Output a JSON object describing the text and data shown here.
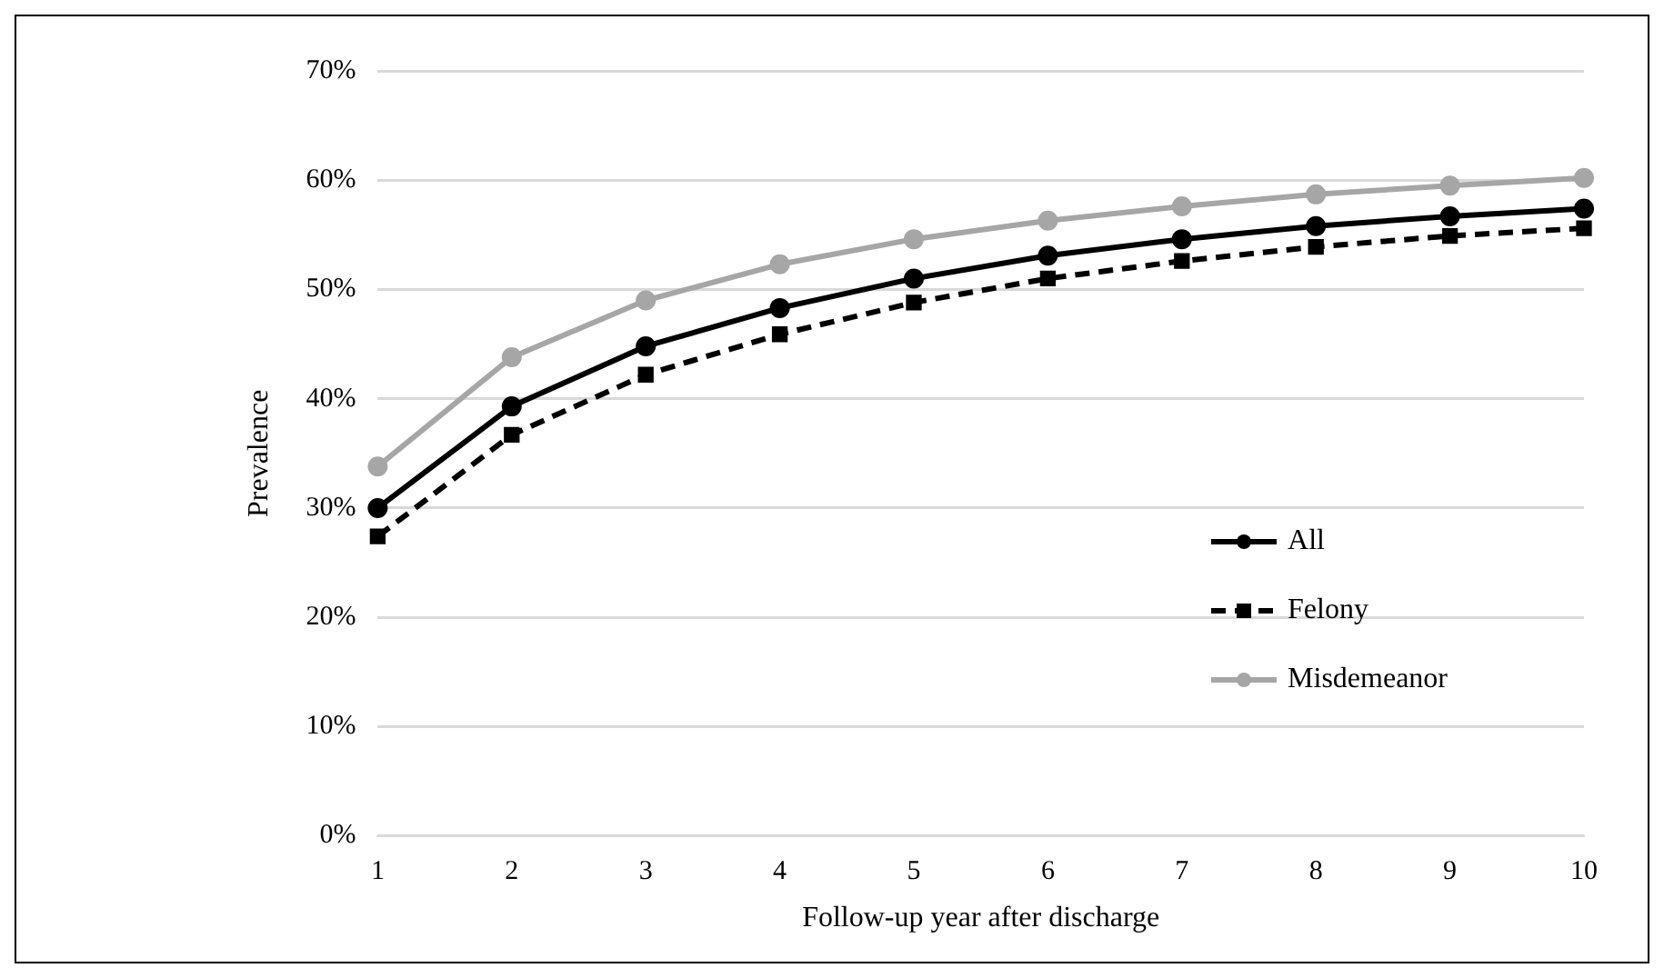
{
  "chart_data": {
    "type": "line",
    "xlabel": "Follow-up year after discharge",
    "ylabel": "Prevalence",
    "categories": [
      "1",
      "2",
      "3",
      "4",
      "5",
      "6",
      "7",
      "8",
      "9",
      "10"
    ],
    "series": [
      {
        "name": "All",
        "color": "#000000",
        "line_style": "solid",
        "marker": "circle",
        "values": [
          30,
          39.3,
          44.8,
          48.3,
          51,
          53.1,
          54.6,
          55.8,
          56.7,
          57.4
        ]
      },
      {
        "name": "Felony",
        "color": "#000000",
        "line_style": "dashed",
        "marker": "square",
        "values": [
          27.4,
          36.7,
          42.2,
          45.9,
          48.8,
          51,
          52.6,
          53.9,
          54.9,
          55.6
        ]
      },
      {
        "name": "Misdemeanor",
        "color": "#a6a6a6",
        "line_style": "solid",
        "marker": "circle",
        "values": [
          33.8,
          43.8,
          49,
          52.3,
          54.6,
          56.3,
          57.6,
          58.7,
          59.5,
          60.2
        ]
      }
    ],
    "ylim": [
      0,
      70
    ],
    "yticks": [
      {
        "value": 0,
        "label": "0%"
      },
      {
        "value": 10,
        "label": "10%"
      },
      {
        "value": 20,
        "label": "20%"
      },
      {
        "value": 30,
        "label": "30%"
      },
      {
        "value": 40,
        "label": "40%"
      },
      {
        "value": 50,
        "label": "50%"
      },
      {
        "value": 60,
        "label": "60%"
      },
      {
        "value": 70,
        "label": "70%"
      }
    ],
    "grid": "y",
    "legend": "right"
  }
}
